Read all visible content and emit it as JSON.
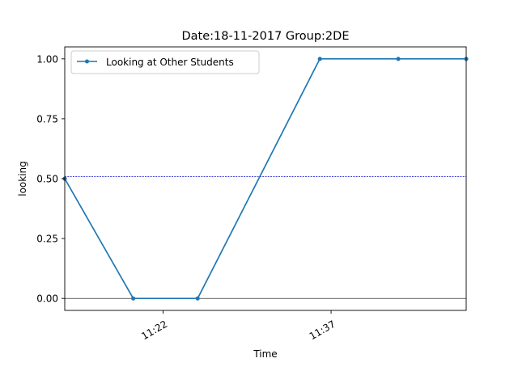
{
  "chart_data": {
    "type": "line",
    "title": "Date:18-11-2017  Group:2DE",
    "xlabel": "Time",
    "ylabel": "looking",
    "x_ticks": [
      {
        "time": "11:22",
        "label": "11:22"
      },
      {
        "time": "11:37",
        "label": "11:37"
      }
    ],
    "y_ticks": [
      {
        "value": 0.0,
        "label": "0.00"
      },
      {
        "value": 0.25,
        "label": "0.25"
      },
      {
        "value": 0.5,
        "label": "0.50"
      },
      {
        "value": 0.75,
        "label": "0.75"
      },
      {
        "value": 1.0,
        "label": "1.00"
      }
    ],
    "xlim": [
      "11:13:13",
      "11:49:04"
    ],
    "ylim": [
      -0.05,
      1.05
    ],
    "series": [
      {
        "name": "Looking at Other Students",
        "color": "#1f77b4",
        "marker": "point",
        "x": [
          "11:13:13",
          "11:19:20",
          "11:25:05",
          "11:36:00",
          "11:43:00",
          "11:49:04"
        ],
        "values": [
          0.5,
          0.0,
          0.0,
          1.0,
          1.0,
          1.0
        ]
      }
    ],
    "reference_lines": [
      {
        "value": 0.508,
        "color": "#0000cc",
        "style": "dotted"
      },
      {
        "value": 0.0,
        "color": "#000000",
        "style": "solid"
      }
    ],
    "legend_position": "upper-left",
    "grid": false
  }
}
